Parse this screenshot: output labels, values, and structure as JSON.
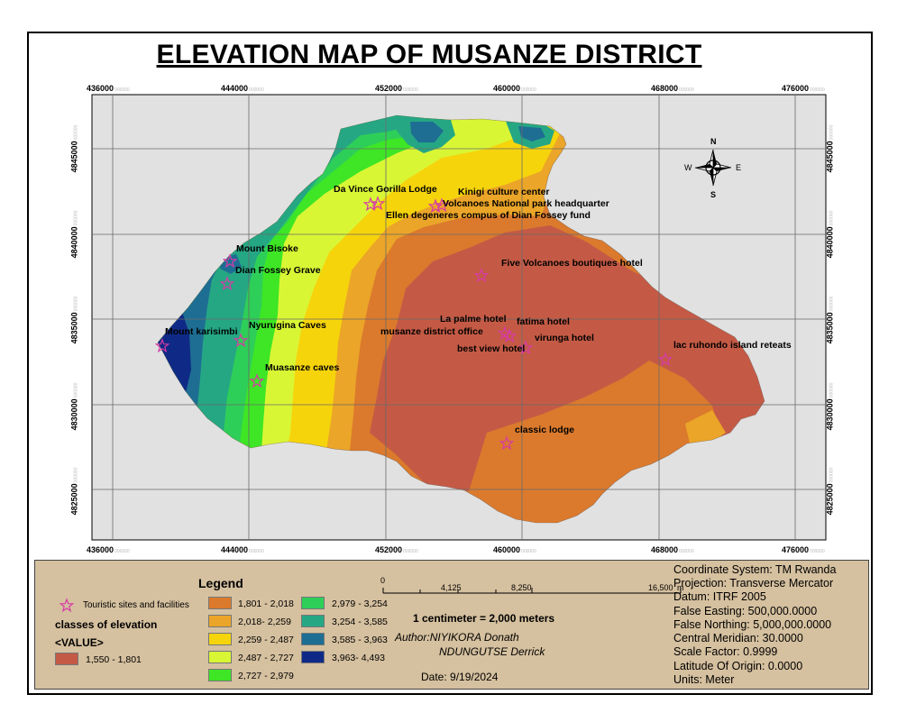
{
  "title": "ELEVATION MAP OF MUSANZE DISTRICT",
  "x_ticks": [
    {
      "main": "436000",
      "sup": "000000"
    },
    {
      "main": "444000",
      "sup": "000000"
    },
    {
      "main": "452000",
      "sup": "000000"
    },
    {
      "main": "460000",
      "sup": "000000"
    },
    {
      "main": "468000",
      "sup": "000000"
    },
    {
      "main": "476000",
      "sup": "000000"
    }
  ],
  "y_ticks": [
    {
      "main": "4845000",
      "sup": "000000"
    },
    {
      "main": "4840000",
      "sup": "000000"
    },
    {
      "main": "4835000",
      "sup": "000000"
    },
    {
      "main": "4830000",
      "sup": "000000"
    },
    {
      "main": "4825000",
      "sup": "000000"
    }
  ],
  "north_arrow": {
    "n": "N",
    "s": "S",
    "e": "E",
    "w": "W"
  },
  "sites": [
    {
      "label": "Da Vince Gorilla Lodge"
    },
    {
      "label": "Kinigi culture center"
    },
    {
      "label": "Volcanoes National park headquarter"
    },
    {
      "label": "Ellen degeneres compus of Dian Fossey fund"
    },
    {
      "label": "Mount Bisoke"
    },
    {
      "label": "Dian Fossey Grave"
    },
    {
      "label": "Five Volcanoes boutiques hotel"
    },
    {
      "label": "La palme hotel"
    },
    {
      "label": "fatima hotel"
    },
    {
      "label": "musanze district office"
    },
    {
      "label": "virunga hotel"
    },
    {
      "label": "best view hotel"
    },
    {
      "label": "Nyurugina Caves"
    },
    {
      "label": "Mount karisimbi"
    },
    {
      "label": "lac ruhondo island reteats"
    },
    {
      "label": "Muasanze caves"
    },
    {
      "label": "classic lodge"
    }
  ],
  "legend": {
    "title": "Legend",
    "sites_label": "Touristic sites and facilities",
    "classes_label": "classes of elevation",
    "value_label": "<VALUE>",
    "classes": [
      {
        "range": "1,550 - 1,801",
        "color": "#c45a45"
      },
      {
        "range": "1,801 - 2,018",
        "color": "#db7a2d"
      },
      {
        "range": "2,018- 2,259",
        "color": "#eba528"
      },
      {
        "range": "2,259 - 2,487",
        "color": "#f6d40c"
      },
      {
        "range": "2,487 - 2,727",
        "color": "#d9f635"
      },
      {
        "range": "2,727 - 2,979",
        "color": "#3ee625"
      },
      {
        "range": "2,979 - 3,254",
        "color": "#2ecf58"
      },
      {
        "range": "3,254 - 3,585",
        "color": "#25a784"
      },
      {
        "range": "3,585 - 3,963",
        "color": "#1e6e93"
      },
      {
        "range": "3,963- 4,493",
        "color": "#0f2a86"
      }
    ]
  },
  "scale_bar": {
    "labels": [
      "0",
      "4,125",
      "8,250",
      "16,500"
    ],
    "unit": "m",
    "statement": "1 centimeter = 2,000 meters"
  },
  "author": {
    "line1": "Author:NIYIKORA Donath",
    "line2": "NDUNGUTSE Derrick"
  },
  "date": "Date: 9/19/2024",
  "projection_info": [
    "Coordinate System: TM Rwanda",
    "Projection: Transverse Mercator",
    "Datum: ITRF 2005",
    "False Easting: 500,000.0000",
    "False Northing: 5,000,000.0000",
    "Central Meridian: 30.0000",
    "Scale Factor: 0.9999",
    "Latitude Of Origin: 0.0000",
    "Units: Meter"
  ],
  "colors": {
    "map_background": "#e1e1e1",
    "legend_background": "#d5c09f",
    "site_marker": "#d63aa6"
  }
}
